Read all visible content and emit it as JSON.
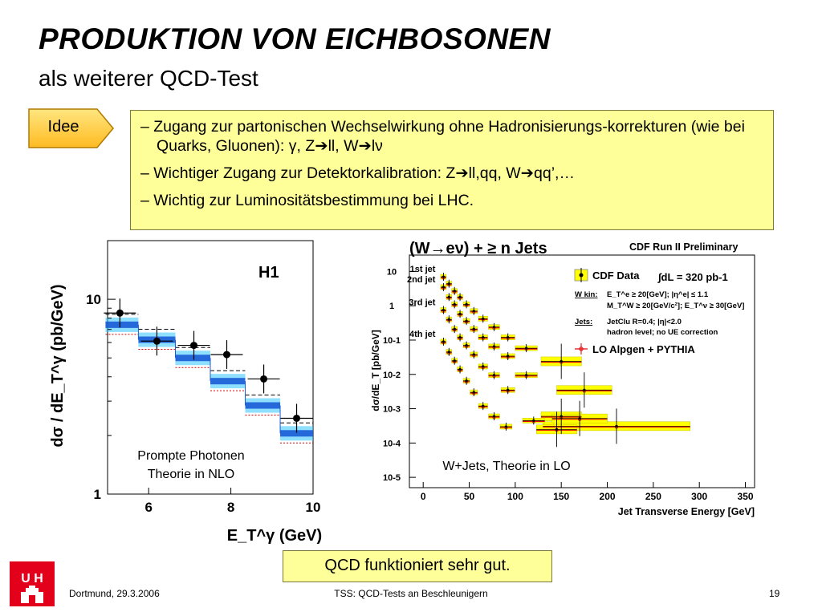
{
  "slide": {
    "title": "PRODUKTION VON EICHBOSONEN",
    "subtitle": "als weiterer QCD-Test",
    "idee_label": "Idee",
    "bullets": [
      "– Zugang zur partonischen Wechselwirkung ohne Hadronisierungs-korrekturen (wie bei Quarks, Gluonen): γ, Z➔ll, W➔lν",
      "– Wichtiger Zugang zur Detektorkalibration: Z➔ll,qq, W➔qq’,…",
      "– Wichtig zur Luminositätsbestimmung bei LHC."
    ],
    "conclusion": "QCD funktioniert sehr gut.",
    "footer_left": "Dortmund, 29.3.2006",
    "footer_center": "TSS: QCD-Tests an Beschleunigern",
    "footer_right": "19",
    "logo_text": "U H",
    "colors": {
      "accent_yellow": "#ffff99",
      "idee_orange": "#ffcc44",
      "logo_red": "#e3001b"
    }
  },
  "chart_data": [
    {
      "type": "scatter",
      "panel_label": "H1",
      "xlabel": "E_T^γ (GeV)",
      "ylabel": "dσ / dE_T^γ (pb/GeV)",
      "yscale": "log",
      "xlim": [
        5,
        10
      ],
      "ylim": [
        1,
        20
      ],
      "xticks": [
        "6",
        "8",
        "10"
      ],
      "yticks": [
        "1",
        "10"
      ],
      "annotation_lines": [
        "Prompte Photonen",
        "Theorie in NLO"
      ],
      "data_points": [
        {
          "x": 5.3,
          "y": 8.5
        },
        {
          "x": 6.2,
          "y": 6.1
        },
        {
          "x": 7.1,
          "y": 5.8
        },
        {
          "x": 7.9,
          "y": 5.2
        },
        {
          "x": 8.8,
          "y": 3.9
        },
        {
          "x": 9.6,
          "y": 2.45
        }
      ],
      "theory_bins": [
        {
          "x0": 4.95,
          "x1": 5.75,
          "y": 7.4
        },
        {
          "x0": 5.75,
          "x1": 6.65,
          "y": 6.2
        },
        {
          "x0": 6.65,
          "x1": 7.5,
          "y": 5.0
        },
        {
          "x0": 7.5,
          "x1": 8.35,
          "y": 3.8
        },
        {
          "x0": 8.35,
          "x1": 9.2,
          "y": 2.85
        },
        {
          "x0": 9.2,
          "x1": 10.0,
          "y": 2.05
        }
      ],
      "colors": {
        "points": "#000000",
        "band": "#1a5bd6",
        "band_light": "#33c4ff",
        "dashed": "#000000",
        "dotted": "#d00000"
      }
    },
    {
      "type": "scatter",
      "title": "(W→eν) + ≥ n Jets",
      "header": "CDF Run II Preliminary",
      "xlabel": "Jet Transverse Energy [GeV]",
      "ylabel": "dσ/dE_T [pb/GeV]",
      "yscale": "log",
      "xlim": [
        -15,
        360
      ],
      "ylim": [
        5e-06,
        30
      ],
      "xticks": [
        "0",
        "50",
        "100",
        "150",
        "200",
        "250",
        "300",
        "350"
      ],
      "yticks": [
        "10",
        "1",
        "10-1",
        "10-2",
        "10-3",
        "10-4",
        "10-5"
      ],
      "legend": [
        "CDF Data",
        "LO Alpgen + PYTHIA"
      ],
      "legend_placement": "top-right",
      "lumi_text": "∫dL = 320 pb-1",
      "cuts": [
        {
          "head": "W kin:",
          "text": "E_T^e ≥ 20[GeV]; |η^e| ≤ 1.1"
        },
        {
          "head": "",
          "text": "M_T^W ≥ 20[GeV/c²]; E_T^ν ≥ 30[GeV]"
        },
        {
          "head": "Jets:",
          "text": "JetClu R=0.4; |η|<2.0"
        },
        {
          "head": "",
          "text": "hadron level; no UE correction"
        }
      ],
      "annotation": "W+Jets, Theorie in LO",
      "series": [
        {
          "name": "1st jet",
          "x": [
            22,
            28,
            34,
            40,
            47,
            55,
            65,
            77,
            92,
            112,
            150,
            175,
            210
          ],
          "y": [
            7.0,
            4.4,
            2.7,
            1.8,
            1.1,
            0.7,
            0.42,
            0.24,
            0.12,
            0.058,
            0.024,
            0.0035,
            0.00031
          ]
        },
        {
          "name": "2nd jet",
          "x": [
            22,
            28,
            34,
            40,
            47,
            55,
            65,
            77,
            92,
            112,
            150,
            170
          ],
          "y": [
            3.5,
            1.8,
            1.1,
            0.58,
            0.36,
            0.21,
            0.12,
            0.065,
            0.034,
            0.0095,
            0.0006,
            0.00052
          ]
        },
        {
          "name": "3rd jet",
          "x": [
            22,
            28,
            34,
            40,
            47,
            55,
            65,
            77,
            92,
            120,
            145
          ],
          "y": [
            0.75,
            0.4,
            0.21,
            0.12,
            0.07,
            0.038,
            0.017,
            0.0095,
            0.0035,
            0.00045,
            0.00025
          ]
        },
        {
          "name": "4th jet",
          "x": [
            22,
            28,
            34,
            40,
            47,
            55,
            65,
            77,
            90
          ],
          "y": [
            0.09,
            0.045,
            0.025,
            0.014,
            0.0065,
            0.003,
            0.0012,
            0.0006,
            0.0003
          ]
        }
      ],
      "colors": {
        "band": "#ffff00",
        "data": "#000000",
        "theory": "#e00000"
      }
    }
  ]
}
